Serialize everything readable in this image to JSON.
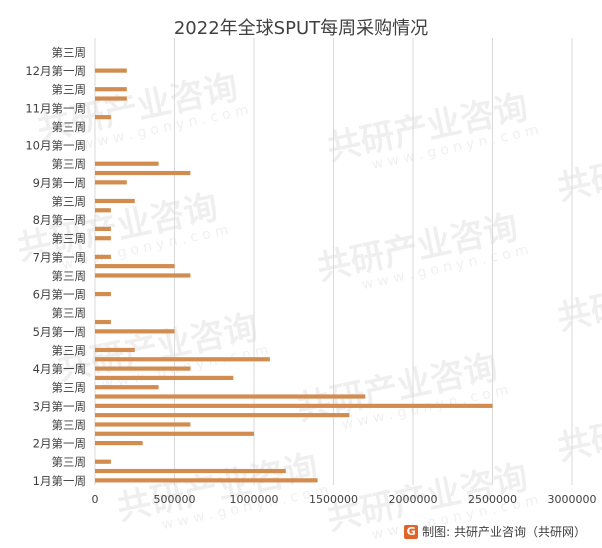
{
  "page": {
    "title": "2022年全球SPUT每周采购情况",
    "source": "制图: 共研产业咨询（共研网）",
    "logo_glyph": "G",
    "watermark": "共研产业咨询",
    "watermark_url": "w w w . g o n y n . c o m"
  },
  "colors": {
    "bar": "#D28C4F",
    "grid": "#D9D9D9",
    "axis_text": "#404040"
  },
  "chart_data": {
    "type": "bar",
    "orientation": "horizontal",
    "title": "2022年全球SPUT每周采购情况",
    "xlabel": "",
    "ylabel": "",
    "xlim": [
      0,
      3000000
    ],
    "x_ticks": [
      0,
      500000,
      1000000,
      1500000,
      2000000,
      2500000,
      3000000
    ],
    "x_tick_labels": [
      "0",
      "500000",
      "1000000",
      "1500000",
      "2000000",
      "2500000",
      "3000000"
    ],
    "grid": true,
    "legend": "none",
    "categories_bottom_to_top": [
      "1月第一周",
      "",
      "第三周",
      "",
      "2月第一周",
      "",
      "第三周",
      "",
      "3月第一周",
      "",
      "第三周",
      "",
      "4月第一周",
      "",
      "第三周",
      "",
      "5月第一周",
      "",
      "第三周",
      "",
      "6月第一周",
      "",
      "第三周",
      "",
      "7月第一周",
      "",
      "第三周",
      "",
      "8月第一周",
      "",
      "第三周",
      "",
      "9月第一周",
      "",
      "第三周",
      "",
      "10月第一周",
      "",
      "第三周",
      "",
      "11月第一周",
      "",
      "第三周",
      "",
      "12月第一周",
      "",
      "第三周",
      ""
    ],
    "values_bottom_to_top": [
      1400000,
      1200000,
      100000,
      0,
      300000,
      1000000,
      600000,
      1600000,
      2500000,
      1700000,
      400000,
      870000,
      600000,
      1100000,
      250000,
      0,
      500000,
      100000,
      0,
      0,
      100000,
      0,
      600000,
      500000,
      100000,
      0,
      100000,
      100000,
      0,
      100000,
      250000,
      0,
      200000,
      600000,
      400000,
      0,
      0,
      0,
      0,
      100000,
      0,
      200000,
      200000,
      0,
      200000,
      0,
      0,
      0
    ]
  }
}
